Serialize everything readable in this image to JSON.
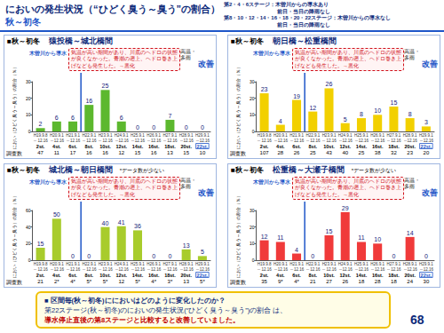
{
  "header": {
    "title": "においの発生状況（“ひどく臭う～臭う”の割合）",
    "subtitle": "秋～初冬",
    "conditions": [
      "第2・4・6ステージ：木曽川からの導水あり",
      "前日・当日の降雨なし",
      "第8・10・12・14・16・18・20・22ステージ：木曽川からの導水なし",
      "前日・当日の降雨なし"
    ]
  },
  "chart_data": [
    {
      "type": "bar",
      "season": "■秋～初冬",
      "title": "猿投橋～城北橋間",
      "y_label": "におい（ひどく臭う～臭う）の割合（％）",
      "categories": [
        "2st.",
        "4st.",
        "6st.",
        "8st.",
        "10st.",
        "12st.",
        "14st.",
        "16st.",
        "18st.",
        "20st.",
        "22st."
      ],
      "periods": [
        [
          "H19.9.8",
          "～12.16"
        ],
        [
          "H20.9.1",
          "～12.16"
        ],
        [
          "H21.9.1",
          "～12.16"
        ],
        [
          "H22.9.1",
          "～12.16"
        ],
        [
          "H23.9.1",
          "～12.16"
        ],
        [
          "H24.9.1",
          "～12.16"
        ],
        [
          "H25.9.1",
          "～12.16"
        ],
        [
          "H26.9.1",
          "～12.16"
        ],
        [
          "H27.9.1",
          "～12.16"
        ],
        [
          "H28.9.1",
          "～12.16"
        ],
        [
          "H29.9.1",
          "～12.16"
        ]
      ],
      "values": [
        2,
        6,
        6,
        16,
        25,
        6,
        0,
        0,
        7,
        0,
        0
      ],
      "color": "#5cb82e",
      "ylim": [
        0,
        30
      ],
      "yticks": [
        0,
        10,
        20,
        30
      ],
      "grid": false,
      "data_labels": true,
      "count_label": "調査数",
      "counts": [
        "47",
        "11",
        "17",
        "16",
        "16",
        "12",
        "15",
        "16",
        "13",
        "15",
        "10"
      ],
      "annotations": {
        "intake": "木曽川から導水",
        "balloon": "気温が高い期間があり、川底のヘドロの状態が良くなかった。青潮の遡上、ヘドロ巻き上げなども発生した。→悪化",
        "weather": "高温・多雨",
        "trend": "改善"
      }
    },
    {
      "type": "bar",
      "season": "■秋～初冬",
      "title": "朝日橋～松重橋間",
      "y_label": "におい（ひどく臭う～臭う）の割合（％）",
      "categories": [
        "2st.",
        "4st.",
        "6st.",
        "8st.",
        "10st.",
        "12st.",
        "14st.",
        "16st.",
        "18st.",
        "20st.",
        "22st."
      ],
      "periods": [
        [
          "H19.9.8",
          "～12.16"
        ],
        [
          "H20.9.1",
          "～12.16"
        ],
        [
          "H21.9.1",
          "～12.16"
        ],
        [
          "H22.9.1",
          "～12.16"
        ],
        [
          "H23.9.1",
          "～12.16"
        ],
        [
          "H24.9.1",
          "～12.16"
        ],
        [
          "H25.9.1",
          "～12.16"
        ],
        [
          "H26.9.1",
          "～12.16"
        ],
        [
          "H27.9.1",
          "～12.16"
        ],
        [
          "H28.9.1",
          "～12.16"
        ],
        [
          "H29.9.1",
          "～12.16"
        ]
      ],
      "values": [
        23,
        4,
        19,
        12,
        26,
        5,
        8,
        10,
        15,
        8,
        3
      ],
      "color": "#f2d000",
      "ylim": [
        0,
        30
      ],
      "yticks": [
        0,
        10,
        20,
        30
      ],
      "grid": false,
      "data_labels": true,
      "count_label": "調査数",
      "counts": [
        "107",
        "28",
        "26",
        "25",
        "43",
        "40",
        "25",
        "38",
        "32",
        "23",
        "20"
      ],
      "annotations": {
        "intake": "木曽川から導水",
        "balloon": "気温が高い期間があり、川底のヘドロの状態が良くなかった。青潮の遡上、ヘドロ巻き上げなども発生した。→悪化",
        "weather": "高温・多雨",
        "trend": "改善"
      }
    },
    {
      "type": "bar",
      "season": "■秋～初冬",
      "title": "城北橋～朝日橋間",
      "note": "*データ数が少ない",
      "y_label": "におい（ひどく臭う～臭う）の割合（％）",
      "categories": [
        "2st.",
        "4st.",
        "6st.",
        "8st.",
        "10st.",
        "12st.",
        "14st.",
        "16st.",
        "18st.",
        "20st.",
        "22st."
      ],
      "periods": [
        [
          "H19.9.8",
          "～12.16"
        ],
        [
          "H20.9.1",
          "～12.16"
        ],
        [
          "H21.9.1",
          "～12.16"
        ],
        [
          "H22.9.1",
          "～12.16"
        ],
        [
          "H23.9.1",
          "～12.16"
        ],
        [
          "H24.9.1",
          "～12.16"
        ],
        [
          "H25.9.1",
          "～12.16"
        ],
        [
          "H26.9.1",
          "～12.16"
        ],
        [
          "H27.9.1",
          "～12.16"
        ],
        [
          "H28.9.1",
          "～12.16"
        ],
        [
          "H29.9.1",
          "～12.16"
        ]
      ],
      "values": [
        15,
        50,
        0,
        0,
        40,
        41,
        36,
        0,
        0,
        13,
        5
      ],
      "color": "#a8cc2c",
      "ylim": [
        0,
        60
      ],
      "yticks": [
        0,
        20,
        40,
        60
      ],
      "grid": false,
      "data_labels": true,
      "count_label": "調査数",
      "counts": [
        "21",
        "2*",
        "4*",
        "5*",
        "5*",
        "12",
        "5*",
        "4*",
        "3*",
        "13",
        "5*"
      ],
      "annotations": {
        "intake": "木曽川から導水",
        "balloon": "気温が高い期間があり、川底のヘドロの状態が良くなかった。青潮の遡上、ヘドロ巻き上げなども発生した。→悪化",
        "weather": "高温・多雨",
        "trend": "改善"
      }
    },
    {
      "type": "bar",
      "season": "■秋～初冬",
      "title": "松重橋～大瀬子橋間",
      "note": "*データ数が少ない",
      "y_label": "におい（ひどく臭う～臭う）の割合（％）",
      "categories": [
        "2st.",
        "4st.",
        "6st.",
        "8st.",
        "10st.",
        "12st.",
        "14st.",
        "16st.",
        "18st.",
        "20st.",
        "22st."
      ],
      "periods": [
        [
          "H19.9.8",
          "～12.16"
        ],
        [
          "H20.9.1",
          "～12.16"
        ],
        [
          "H21.9.1",
          "～12.16"
        ],
        [
          "H22.9.1",
          "～12.16"
        ],
        [
          "H23.9.1",
          "～12.16"
        ],
        [
          "H24.9.1",
          "～12.16"
        ],
        [
          "H25.9.1",
          "～12.16"
        ],
        [
          "H26.9.1",
          "～12.16"
        ],
        [
          "H27.9.1",
          "～12.16"
        ],
        [
          "H28.9.1",
          "～12.16"
        ],
        [
          "H29.9.1",
          "～12.16"
        ]
      ],
      "values": [
        12,
        11,
        4,
        0,
        15,
        29,
        11,
        10,
        0,
        14,
        0
      ],
      "color": "#f03a3a",
      "ylim": [
        0,
        30
      ],
      "yticks": [
        0,
        10,
        20,
        30
      ],
      "grid": false,
      "data_labels": true,
      "count_label": "調査数",
      "counts": [
        "35",
        "9*",
        "4*",
        "21",
        "27",
        "26",
        "18",
        "28",
        "18",
        "24",
        "30"
      ],
      "annotations": {
        "intake": "木曽川から導水",
        "balloon": "気温が高い期間があり、川底のヘドロの状態が良くなかった。青潮の遡上、ヘドロ巻き上げなども発生した。→悪化",
        "weather": "高温・多雨",
        "trend": "改善"
      }
    }
  ],
  "footer": {
    "question": "■ 区間毎(秋～初冬)ににおいはどのように変化したのか？",
    "answer": [
      "第22ステージ(秋～初冬)のにおいの発生状況(“ひどく臭う～臭う”)の割合 は、",
      "導水停止直後の第8ステージと比較すると改善していました。"
    ],
    "page": "68"
  }
}
